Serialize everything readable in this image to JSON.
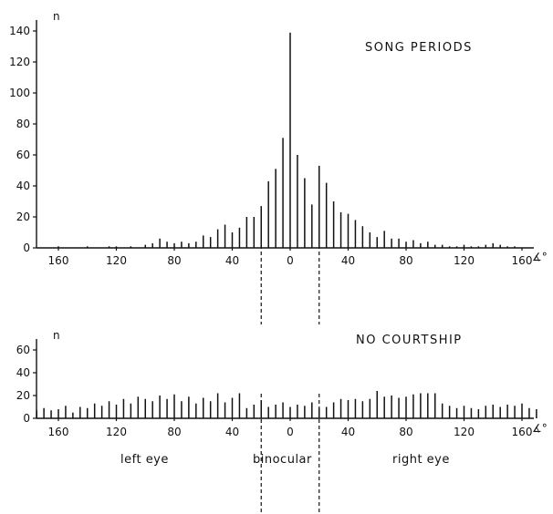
{
  "chart_data": [
    {
      "type": "bar",
      "title": "SONG PERIODS",
      "ylabel": "n",
      "xunit": "∡°",
      "ylim": [
        0,
        140
      ],
      "yticks": [
        0,
        20,
        40,
        60,
        80,
        100,
        120,
        140
      ],
      "xticks": [
        {
          "x": -160,
          "label": "160"
        },
        {
          "x": -120,
          "label": "120"
        },
        {
          "x": -80,
          "label": "80"
        },
        {
          "x": -40,
          "label": "40"
        },
        {
          "x": 0,
          "label": "0"
        },
        {
          "x": 40,
          "label": "40"
        },
        {
          "x": 80,
          "label": "80"
        },
        {
          "x": 120,
          "label": "120"
        },
        {
          "x": 160,
          "label": "160"
        }
      ],
      "x": [
        -175,
        -170,
        -165,
        -160,
        -155,
        -150,
        -145,
        -140,
        -135,
        -130,
        -125,
        -120,
        -115,
        -110,
        -105,
        -100,
        -95,
        -90,
        -85,
        -80,
        -75,
        -70,
        -65,
        -60,
        -55,
        -50,
        -45,
        -40,
        -35,
        -30,
        -25,
        -20,
        -15,
        -10,
        -5,
        0,
        5,
        10,
        15,
        20,
        25,
        30,
        35,
        40,
        45,
        50,
        55,
        60,
        65,
        70,
        75,
        80,
        85,
        90,
        95,
        100,
        105,
        110,
        115,
        120,
        125,
        130,
        135,
        140,
        145,
        150,
        155,
        160,
        165,
        170,
        175
      ],
      "values": [
        0,
        0,
        0,
        1,
        0,
        0,
        0,
        1,
        0,
        0,
        1,
        1,
        0,
        1,
        0,
        2,
        3,
        6,
        4,
        3,
        4,
        3,
        4,
        8,
        7,
        12,
        15,
        10,
        13,
        20,
        20,
        27,
        43,
        51,
        71,
        139,
        60,
        45,
        28,
        53,
        42,
        30,
        23,
        22,
        18,
        14,
        10,
        7,
        11,
        6,
        6,
        4,
        5,
        3,
        4,
        2,
        2,
        1,
        1,
        2,
        1,
        1,
        2,
        3,
        2,
        1,
        1,
        0,
        0,
        0,
        0
      ],
      "annotations": {
        "region_boundaries": [
          -20,
          20
        ]
      }
    },
    {
      "type": "bar",
      "title": "NO COURTSHIP",
      "ylabel": "n",
      "xunit": "∡°",
      "ylim": [
        0,
        70
      ],
      "yticks": [
        0,
        20,
        40,
        60
      ],
      "xticks": [
        {
          "x": -160,
          "label": "160"
        },
        {
          "x": -120,
          "label": "120"
        },
        {
          "x": -80,
          "label": "80"
        },
        {
          "x": -40,
          "label": "40"
        },
        {
          "x": 0,
          "label": "0"
        },
        {
          "x": 40,
          "label": "40"
        },
        {
          "x": 80,
          "label": "80"
        },
        {
          "x": 120,
          "label": "120"
        },
        {
          "x": 160,
          "label": "160"
        }
      ],
      "x": [
        -175,
        -170,
        -165,
        -160,
        -155,
        -150,
        -145,
        -140,
        -135,
        -130,
        -125,
        -120,
        -115,
        -110,
        -105,
        -100,
        -95,
        -90,
        -85,
        -80,
        -75,
        -70,
        -65,
        -60,
        -55,
        -50,
        -45,
        -40,
        -35,
        -30,
        -25,
        -20,
        -15,
        -10,
        -5,
        0,
        5,
        10,
        15,
        20,
        25,
        30,
        35,
        40,
        45,
        50,
        55,
        60,
        65,
        70,
        75,
        80,
        85,
        90,
        95,
        100,
        105,
        110,
        115,
        120,
        125,
        130,
        135,
        140,
        145,
        150,
        155,
        160,
        165,
        170,
        175
      ],
      "values": [
        7,
        9,
        7,
        8,
        11,
        5,
        10,
        9,
        13,
        11,
        15,
        12,
        17,
        13,
        19,
        17,
        15,
        20,
        17,
        21,
        15,
        19,
        13,
        18,
        15,
        22,
        14,
        18,
        22,
        9,
        12,
        16,
        10,
        12,
        14,
        10,
        12,
        11,
        14,
        9,
        10,
        14,
        17,
        16,
        17,
        15,
        17,
        24,
        19,
        20,
        18,
        19,
        21,
        22,
        22,
        22,
        13,
        11,
        9,
        11,
        9,
        8,
        11,
        12,
        10,
        12,
        11,
        13,
        9,
        8,
        0
      ],
      "annotations": {
        "region_boundaries": [
          -20,
          20
        ]
      }
    }
  ],
  "region_labels": {
    "left": "left eye",
    "center": "binocular",
    "right": "right eye"
  }
}
